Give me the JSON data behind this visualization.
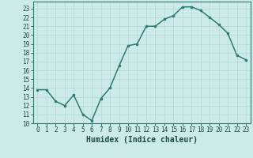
{
  "x": [
    0,
    1,
    2,
    3,
    4,
    5,
    6,
    7,
    8,
    9,
    10,
    11,
    12,
    13,
    14,
    15,
    16,
    17,
    18,
    19,
    20,
    21,
    22,
    23
  ],
  "y": [
    13.8,
    13.8,
    12.5,
    12.0,
    13.2,
    11.0,
    10.3,
    12.8,
    14.0,
    16.5,
    18.8,
    19.0,
    21.0,
    21.0,
    21.8,
    22.2,
    23.2,
    23.2,
    22.8,
    22.0,
    21.2,
    20.2,
    17.7,
    17.2
  ],
  "line_color": "#2d7d6e",
  "marker": ".",
  "marker_size": 3.5,
  "bg_color": "#cceae8",
  "grid_color": "#b0d8d5",
  "xlabel": "Humidex (Indice chaleur)",
  "xlim": [
    -0.5,
    23.5
  ],
  "ylim": [
    10,
    23.8
  ],
  "yticks": [
    10,
    11,
    12,
    13,
    14,
    15,
    16,
    17,
    18,
    19,
    20,
    21,
    22,
    23
  ],
  "xticks": [
    0,
    1,
    2,
    3,
    4,
    5,
    6,
    7,
    8,
    9,
    10,
    11,
    12,
    13,
    14,
    15,
    16,
    17,
    18,
    19,
    20,
    21,
    22,
    23
  ],
  "axis_color": "#2d7d6e",
  "tick_color": "#1a4a40",
  "xlabel_fontsize": 7,
  "tick_fontsize": 5.5,
  "linewidth": 1.1
}
